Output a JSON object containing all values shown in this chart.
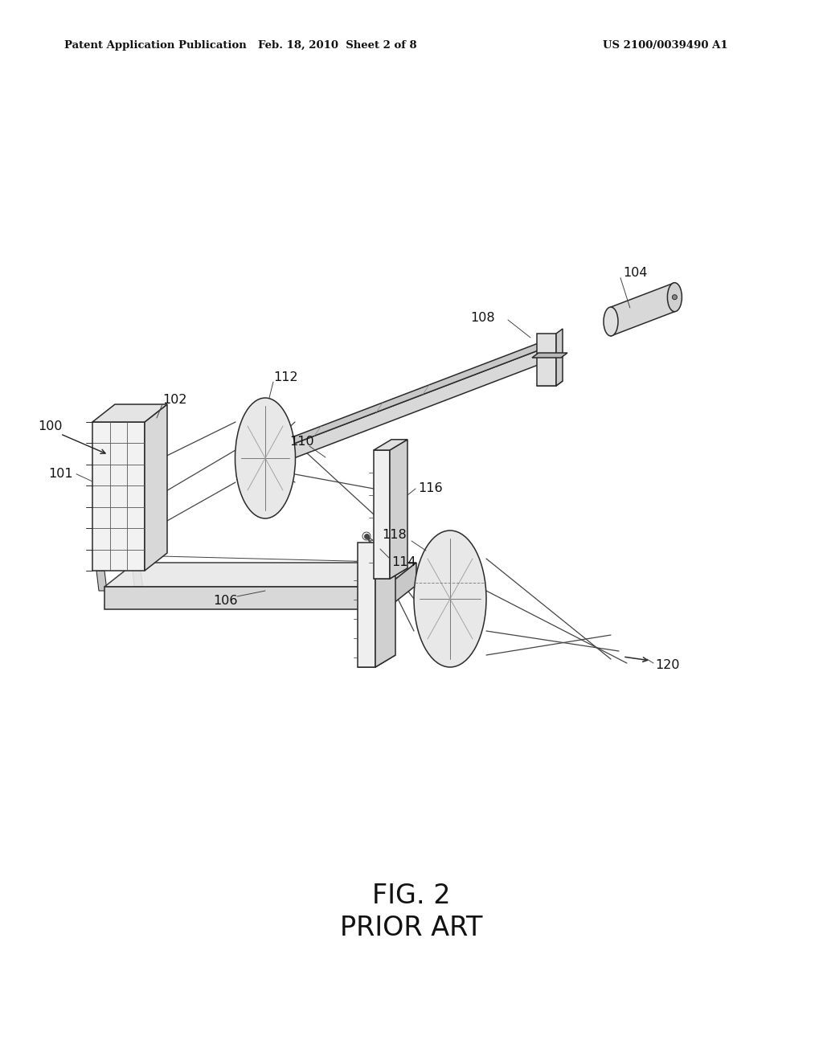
{
  "bg_color": "#ffffff",
  "header_left": "Patent Application Publication",
  "header_mid": "Feb. 18, 2010  Sheet 2 of 8",
  "header_right": "US 2100/0039490 A1",
  "fig_label": "FIG. 2",
  "fig_sublabel": "PRIOR ART",
  "line_color": "#2a2a2a",
  "fill_light": "#e8e8e8",
  "fill_mid": "#d0d0d0",
  "fill_dark": "#b8b8b8"
}
